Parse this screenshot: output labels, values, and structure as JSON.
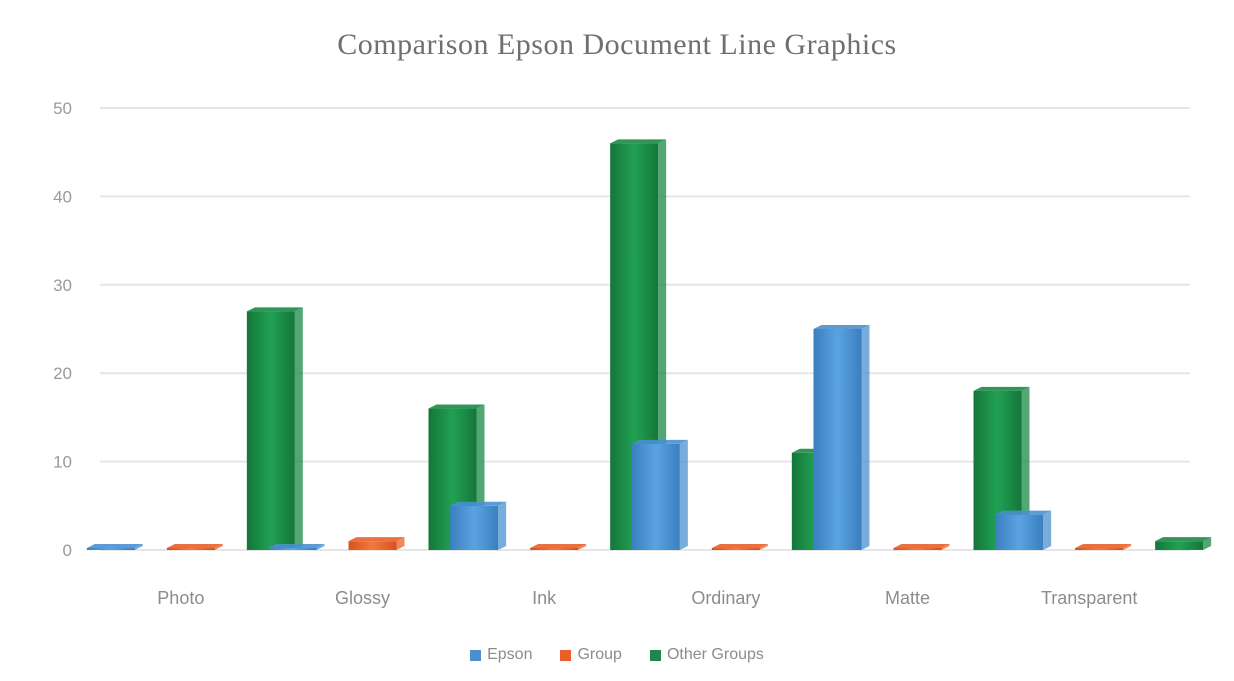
{
  "chart_data": {
    "type": "bar",
    "title": "Comparison Epson Document Line Graphics",
    "xlabel": "",
    "ylabel": "",
    "categories": [
      "Photo",
      "Glossy",
      "Ink",
      "Ordinary",
      "Matte",
      "Transparent"
    ],
    "series": [
      {
        "name": "Epson",
        "color": "#4a90cf",
        "values": [
          0,
          0,
          5,
          12,
          25,
          4
        ]
      },
      {
        "name": "Group",
        "color": "#e8602a",
        "values": [
          0,
          1,
          0,
          0,
          0,
          0
        ]
      },
      {
        "name": "Other Groups",
        "color": "#1a8a45",
        "values": [
          27,
          16,
          46,
          11,
          18,
          1
        ]
      }
    ],
    "yticks": [
      0,
      10,
      20,
      30,
      40,
      50
    ],
    "ylim": [
      0,
      50
    ],
    "grid": true,
    "legend": "bottom"
  }
}
